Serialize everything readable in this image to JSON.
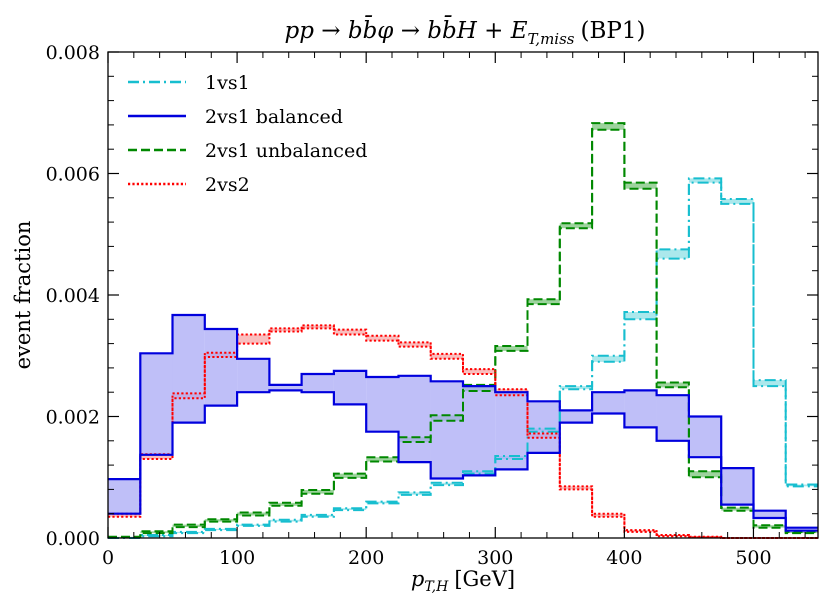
{
  "chart_data": {
    "type": "line",
    "title": "pp → bb̄φ → bb̄H + E_T,miss (BP1)",
    "title_parts": {
      "process": "pp → bb̄φ → bb̄H + E",
      "subscript": "T,miss",
      "tag": "(BP1)"
    },
    "xlabel": "p_T,H [GeV]",
    "xlabel_parts": {
      "var": "p",
      "sub": "T,H",
      "unit": "[GeV]"
    },
    "ylabel": "event fraction",
    "xlim": [
      0,
      550
    ],
    "ylim": [
      0,
      0.008
    ],
    "x_ticks": [
      0,
      100,
      200,
      300,
      400,
      500
    ],
    "x_tick_labels": [
      "0",
      "100",
      "200",
      "300",
      "400",
      "500"
    ],
    "y_ticks": [
      0,
      0.002,
      0.004,
      0.006,
      0.008
    ],
    "y_tick_labels": [
      "0.000",
      "0.002",
      "0.004",
      "0.006",
      "0.008"
    ],
    "bin_edges": [
      0,
      25,
      50,
      75,
      100,
      125,
      150,
      175,
      200,
      225,
      250,
      275,
      300,
      325,
      350,
      375,
      400,
      425,
      450,
      475,
      500,
      525,
      550
    ],
    "legend_position": "top-left",
    "series": [
      {
        "name": "1vs1",
        "style": "dashdot",
        "color": "#17becf",
        "fill": "#8fe0e6",
        "lower": [
          0.0,
          3e-05,
          8e-05,
          0.00013,
          0.0002,
          0.00027,
          0.00035,
          0.00046,
          0.00057,
          0.00071,
          0.00087,
          0.00106,
          0.0013,
          0.00175,
          0.00245,
          0.0029,
          0.0036,
          0.0046,
          0.00585,
          0.0055,
          0.0025,
          0.00085
        ],
        "upper": [
          0.0,
          5e-05,
          0.0001,
          0.00015,
          0.00022,
          0.0003,
          0.00038,
          0.00049,
          0.0006,
          0.00075,
          0.00091,
          0.0011,
          0.00135,
          0.0018,
          0.0025,
          0.003,
          0.00372,
          0.00475,
          0.00592,
          0.00558,
          0.0026,
          0.00088
        ]
      },
      {
        "name": "2vs1 balanced",
        "style": "solid",
        "color": "#0000dd",
        "fill": "#aaaaf5",
        "lower": [
          0.0004,
          0.00137,
          0.0019,
          0.00218,
          0.0024,
          0.00243,
          0.0024,
          0.0022,
          0.00175,
          0.00125,
          0.00098,
          0.00103,
          0.00113,
          0.0014,
          0.0019,
          0.00205,
          0.00182,
          0.0016,
          0.00133,
          0.00055,
          0.00033,
          0.00012
        ],
        "upper": [
          0.00097,
          0.00304,
          0.00367,
          0.00344,
          0.00295,
          0.00252,
          0.0027,
          0.00275,
          0.00265,
          0.00267,
          0.00258,
          0.0025,
          0.0024,
          0.00225,
          0.0021,
          0.0024,
          0.00243,
          0.00235,
          0.002,
          0.00115,
          0.00045,
          0.00017
        ]
      },
      {
        "name": "2vs1 unbalanced",
        "style": "dashed",
        "color": "#008800",
        "fill": "#7cc47c",
        "lower": [
          1e-05,
          8e-05,
          0.00018,
          0.00027,
          0.00037,
          0.00053,
          0.00073,
          0.00099,
          0.00126,
          0.00158,
          0.00193,
          0.00242,
          0.00308,
          0.00385,
          0.0051,
          0.00672,
          0.00575,
          0.00248,
          0.001,
          0.00045,
          0.00017,
          8e-05
        ],
        "upper": [
          2e-05,
          0.00011,
          0.00022,
          0.00031,
          0.00042,
          0.00058,
          0.00079,
          0.00106,
          0.00133,
          0.00166,
          0.00202,
          0.00252,
          0.00316,
          0.00393,
          0.00518,
          0.00683,
          0.00585,
          0.00256,
          0.0011,
          0.0005,
          0.00021,
          0.0001
        ]
      },
      {
        "name": "2vs2",
        "style": "dotted",
        "color": "#ff0000",
        "fill": "#f7a8a8",
        "lower": [
          0.00035,
          0.0013,
          0.0023,
          0.00298,
          0.0032,
          0.0034,
          0.00345,
          0.00335,
          0.00325,
          0.00315,
          0.00295,
          0.0027,
          0.00235,
          0.00165,
          0.0008,
          0.00035,
          0.0001,
          3e-05,
          1e-05,
          0.0,
          0.0,
          0.0
        ],
        "upper": [
          0.0004,
          0.00138,
          0.00238,
          0.00305,
          0.00335,
          0.00345,
          0.0035,
          0.00343,
          0.00333,
          0.00322,
          0.00303,
          0.00278,
          0.00245,
          0.00172,
          0.00085,
          0.0004,
          0.00013,
          5e-05,
          2e-05,
          0.0,
          0.0,
          0.0
        ]
      }
    ]
  }
}
